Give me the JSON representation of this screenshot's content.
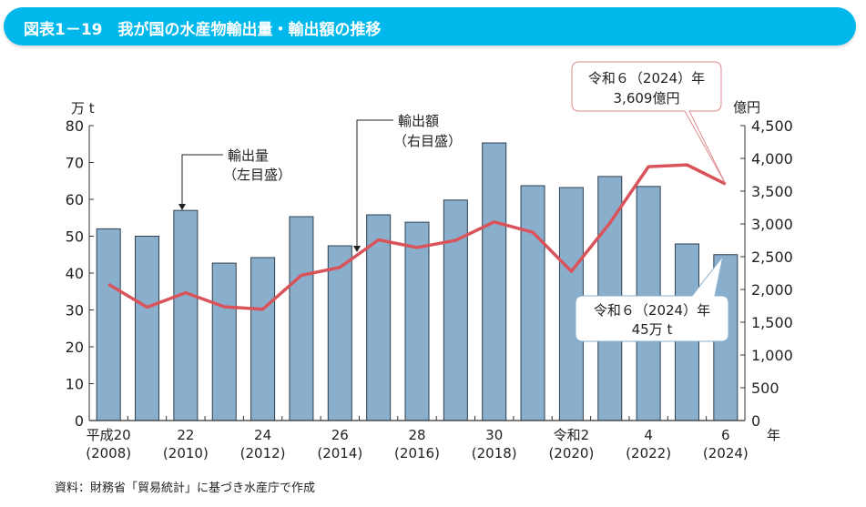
{
  "title": "図表1－19　我が国の水産物輸出量・輸出額の推移",
  "source": "資料：財務省「貿易統計」に基づき水産庁で作成",
  "colors": {
    "title_bar": "#00b8ec",
    "bar": "#8aafcd",
    "line": "#d9545a",
    "callout_red_border": "#e08a8e",
    "callout_blue_border": "#8aafcd"
  },
  "chart_data": {
    "type": "bar+line",
    "x": [
      2008,
      2009,
      2010,
      2011,
      2012,
      2013,
      2014,
      2015,
      2016,
      2017,
      2018,
      2019,
      2020,
      2021,
      2022,
      2023,
      2024
    ],
    "x_tick_labels": [
      {
        "year": 2008,
        "era": "平成20",
        "western": "(2008)"
      },
      {
        "year": 2010,
        "era": "22",
        "western": "(2010)"
      },
      {
        "year": 2012,
        "era": "24",
        "western": "(2012)"
      },
      {
        "year": 2014,
        "era": "26",
        "western": "(2014)"
      },
      {
        "year": 2016,
        "era": "28",
        "western": "(2016)"
      },
      {
        "year": 2018,
        "era": "30",
        "western": "(2018)"
      },
      {
        "year": 2020,
        "era": "令和2",
        "western": "(2020)"
      },
      {
        "year": 2022,
        "era": "4",
        "western": "(2022)"
      },
      {
        "year": 2024,
        "era": "6",
        "western": "(2024)"
      }
    ],
    "xlabel": "年",
    "series": [
      {
        "name": "輸出量（左目盛）",
        "type": "bar",
        "axis": "left",
        "values": [
          52,
          50,
          57,
          42.7,
          44.2,
          55.3,
          47.4,
          55.8,
          53.8,
          59.8,
          75.3,
          63.7,
          63.2,
          66.2,
          63.5,
          47.9,
          45
        ]
      },
      {
        "name": "輸出額（右目盛）",
        "type": "line",
        "axis": "right",
        "values": [
          2078,
          1729,
          1950,
          1736,
          1698,
          2216,
          2337,
          2757,
          2640,
          2749,
          3031,
          2873,
          2276,
          3015,
          3873,
          3901,
          3609
        ]
      }
    ],
    "left_axis": {
      "label": "万 t",
      "ylim": [
        0,
        80
      ],
      "ticks": [
        "0",
        "10",
        "20",
        "30",
        "40",
        "50",
        "60",
        "70",
        "80"
      ]
    },
    "right_axis": {
      "label": "億円",
      "ylim": [
        0,
        4500
      ],
      "ticks": [
        "0",
        "500",
        "1,000",
        "1,500",
        "2,000",
        "2,500",
        "3,000",
        "3,500",
        "4,000",
        "4,500"
      ]
    },
    "legend_labels": {
      "volume": [
        "輸出量",
        "（左目盛）"
      ],
      "value": [
        "輸出額",
        "（右目盛）"
      ]
    },
    "annotations": {
      "value_2024": [
        "令和６（2024）年",
        "3,609億円"
      ],
      "volume_2024": [
        "令和６（2024）年",
        "45万 t"
      ]
    },
    "grid": false
  }
}
